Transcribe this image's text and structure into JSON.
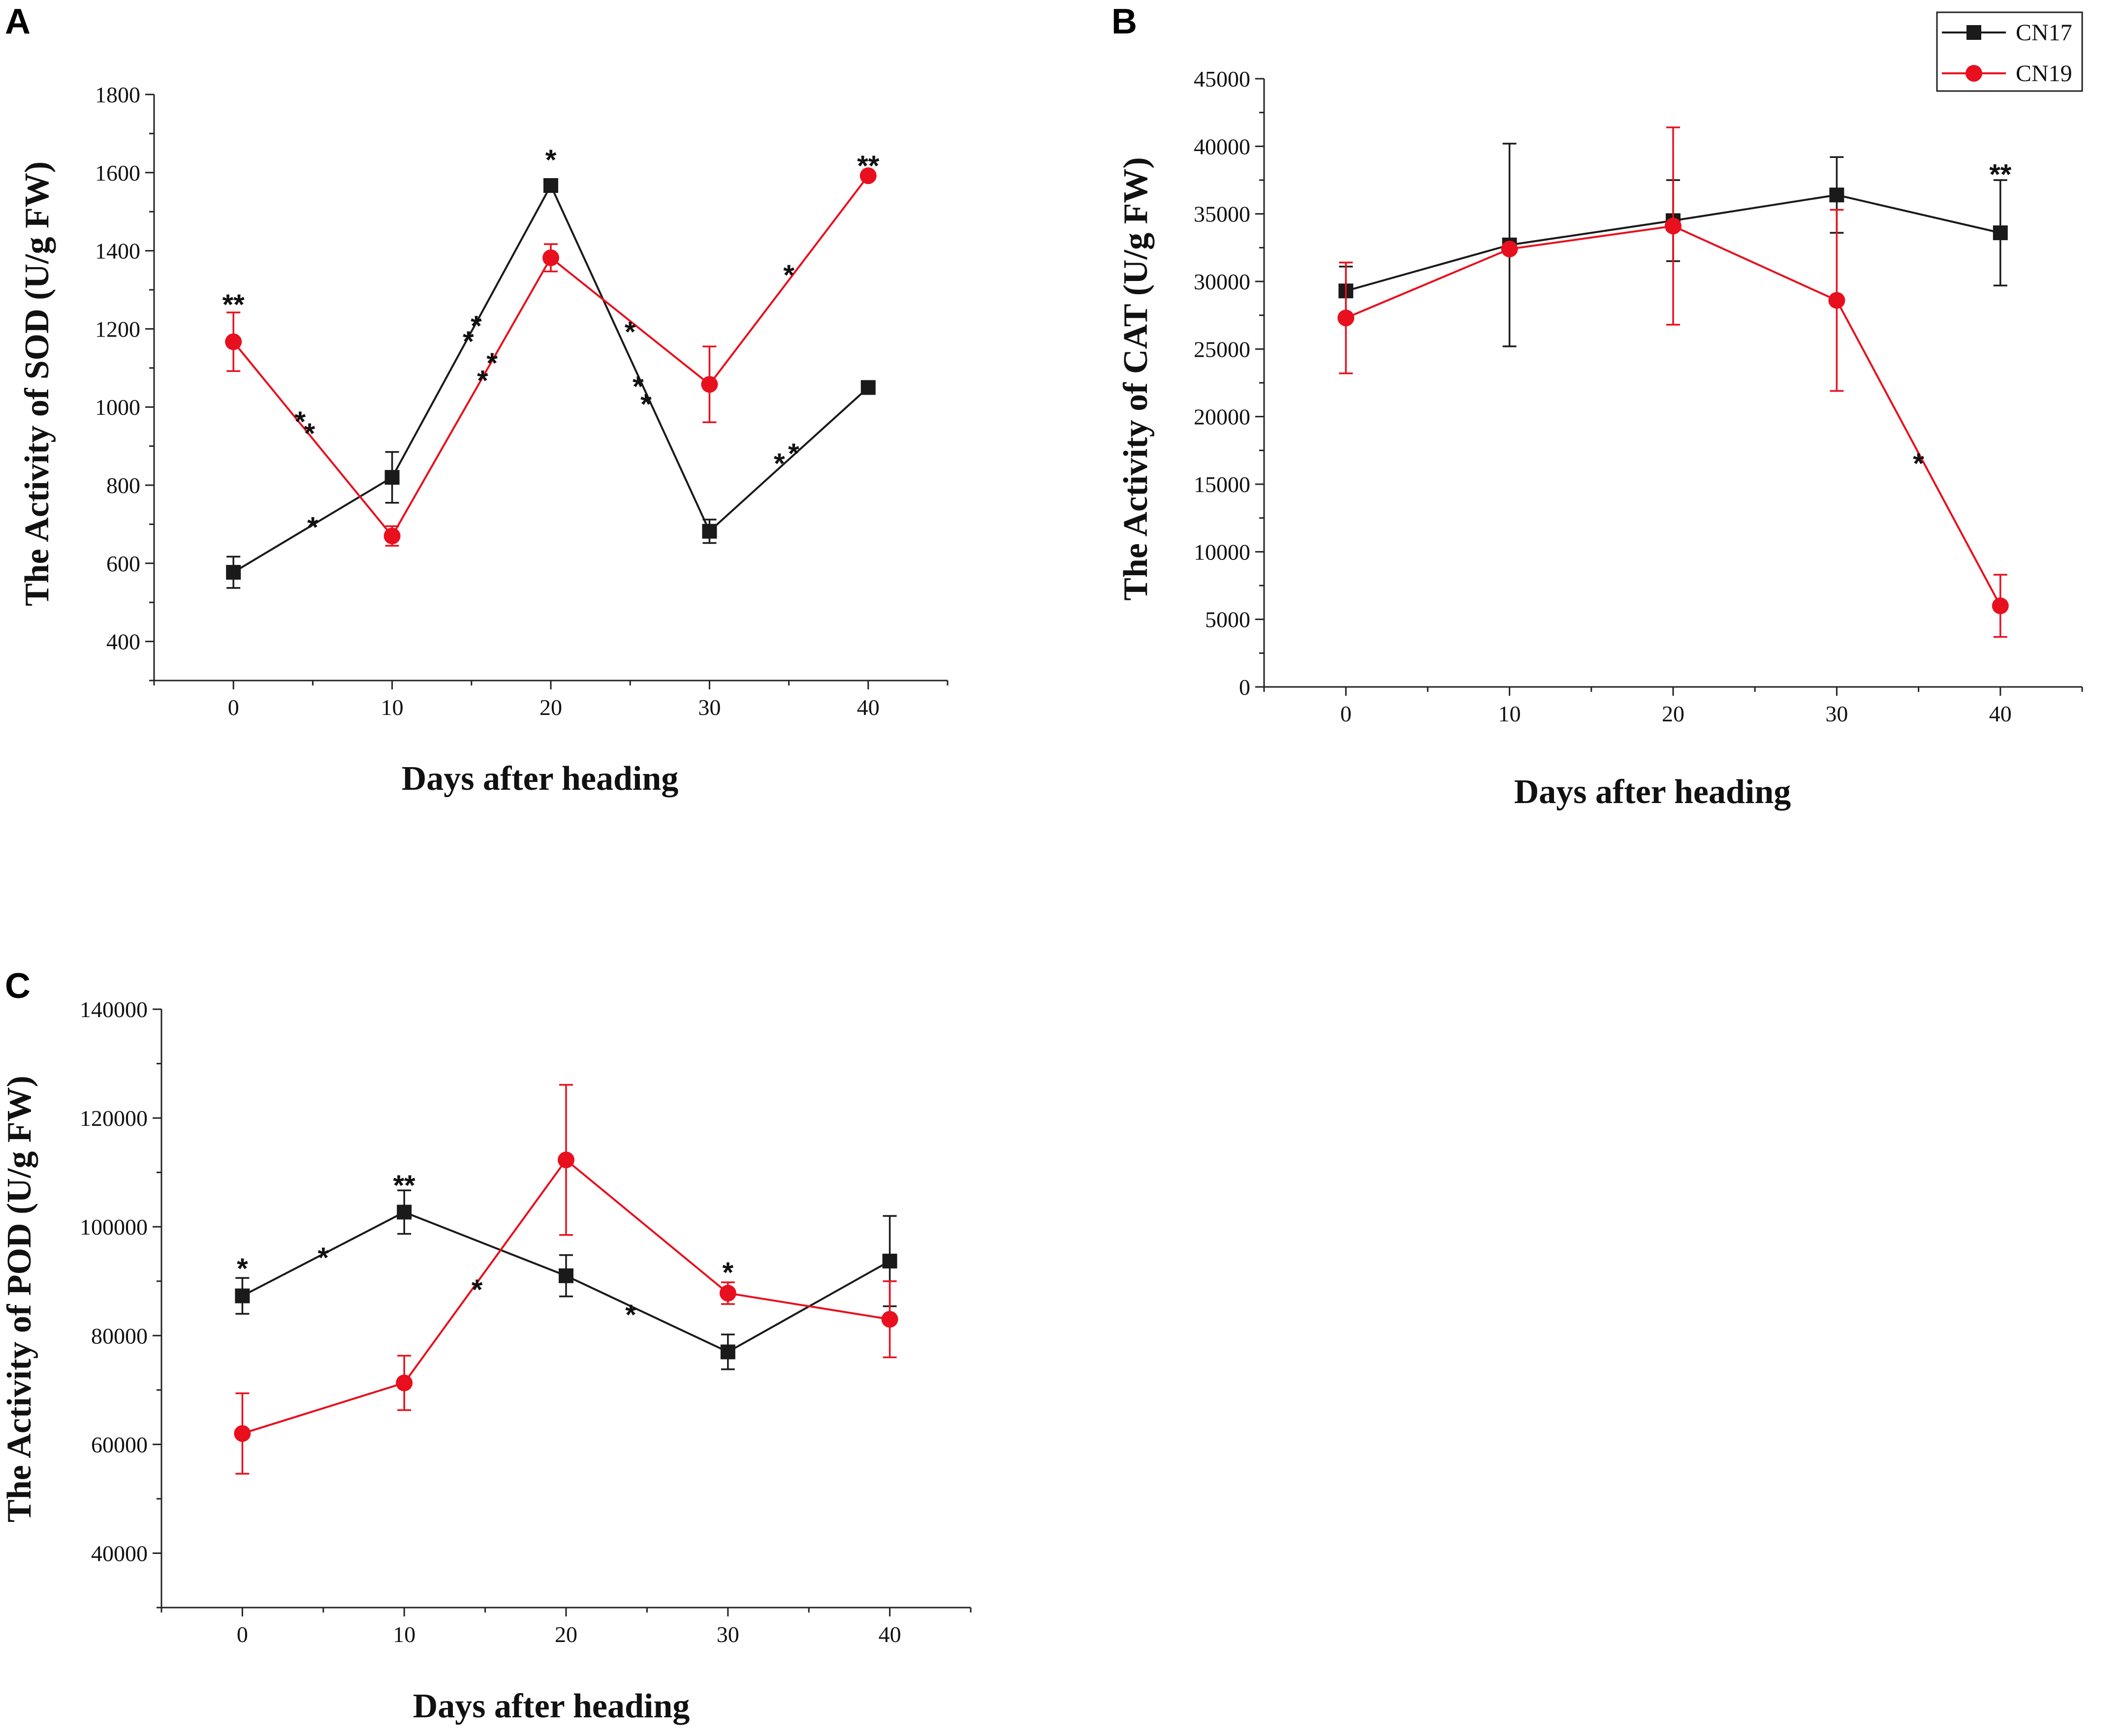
{
  "legend": {
    "entries": [
      {
        "name": "CN17",
        "color": "#1a1a1a",
        "marker": "square"
      },
      {
        "name": "CN19",
        "color": "#e8101e",
        "marker": "circle"
      }
    ]
  },
  "chart_data": [
    {
      "panel": "A",
      "type": "line",
      "xlabel": "Days after heading",
      "ylabel": "The Activity of SOD (U/g FW)",
      "x": [
        0,
        10,
        20,
        30,
        40
      ],
      "xlim": [
        -5,
        45
      ],
      "ylim": [
        300,
        1800
      ],
      "xticks": [
        0,
        10,
        20,
        30,
        40
      ],
      "yticks": [
        400,
        600,
        800,
        1000,
        1200,
        1400,
        1600,
        1800
      ],
      "series": [
        {
          "name": "CN17",
          "color": "#1a1a1a",
          "marker": "square",
          "values": [
            577,
            820,
            1567,
            682,
            1050
          ],
          "errors": [
            40,
            65,
            10,
            30,
            0
          ]
        },
        {
          "name": "CN19",
          "color": "#e8101e",
          "marker": "circle",
          "values": [
            1167,
            670,
            1382,
            1058,
            1592
          ],
          "errors": [
            75,
            25,
            35,
            97,
            0
          ]
        }
      ],
      "annotations": [
        {
          "x": 0,
          "y": 1265,
          "text": "**"
        },
        {
          "x": 20,
          "y": 1635,
          "text": "*"
        },
        {
          "x": 40,
          "y": 1620,
          "text": "**"
        },
        {
          "x": 4.2,
          "y": 965,
          "text": "*"
        },
        {
          "x": 4.8,
          "y": 935,
          "text": "*"
        },
        {
          "x": 5,
          "y": 695,
          "text": "*"
        },
        {
          "x": 14.8,
          "y": 1170,
          "text": "*"
        },
        {
          "x": 15.3,
          "y": 1210,
          "text": "*"
        },
        {
          "x": 15.7,
          "y": 1070,
          "text": "*"
        },
        {
          "x": 16.3,
          "y": 1115,
          "text": "*"
        },
        {
          "x": 25,
          "y": 1195,
          "text": "*"
        },
        {
          "x": 25.5,
          "y": 1055,
          "text": "*"
        },
        {
          "x": 26,
          "y": 1010,
          "text": "*"
        },
        {
          "x": 34.4,
          "y": 858,
          "text": "*"
        },
        {
          "x": 35.3,
          "y": 883,
          "text": "*"
        },
        {
          "x": 35,
          "y": 1340,
          "text": "*"
        }
      ]
    },
    {
      "panel": "B",
      "type": "line",
      "xlabel": "Days after heading",
      "ylabel": "The Activity of CAT (U/g FW)",
      "x": [
        0,
        10,
        20,
        30,
        40
      ],
      "xlim": [
        -5,
        45
      ],
      "ylim": [
        0,
        45000
      ],
      "xticks": [
        0,
        10,
        20,
        30,
        40
      ],
      "yticks": [
        0,
        5000,
        10000,
        15000,
        20000,
        25000,
        30000,
        35000,
        40000,
        45000
      ],
      "series": [
        {
          "name": "CN17",
          "color": "#1a1a1a",
          "marker": "square",
          "values": [
            29300,
            32700,
            34500,
            36400,
            33600
          ],
          "errors": [
            1800,
            7500,
            3000,
            2800,
            3900
          ]
        },
        {
          "name": "CN19",
          "color": "#e8101e",
          "marker": "circle",
          "values": [
            27300,
            32400,
            34100,
            28600,
            6000
          ],
          "errors": [
            4100,
            0,
            7300,
            6700,
            2300
          ]
        }
      ],
      "annotations": [
        {
          "x": 40,
          "y": 38000,
          "text": "**"
        },
        {
          "x": 35,
          "y": 16600,
          "text": "*"
        }
      ]
    },
    {
      "panel": "C",
      "type": "line",
      "xlabel": "Days after heading",
      "ylabel": "The Activity of POD (U/g FW)",
      "x": [
        0,
        10,
        20,
        30,
        40
      ],
      "xlim": [
        -5,
        45
      ],
      "ylim": [
        30000,
        140000
      ],
      "xticks": [
        0,
        10,
        20,
        30,
        40
      ],
      "yticks": [
        40000,
        60000,
        80000,
        100000,
        120000,
        140000
      ],
      "series": [
        {
          "name": "CN17",
          "color": "#1a1a1a",
          "marker": "square",
          "values": [
            87300,
            102700,
            91000,
            77000,
            93700
          ],
          "errors": [
            3300,
            4000,
            3800,
            3200,
            8300
          ]
        },
        {
          "name": "CN19",
          "color": "#e8101e",
          "marker": "circle",
          "values": [
            62000,
            71300,
            112300,
            87800,
            83000
          ],
          "errors": [
            7400,
            5000,
            13800,
            2000,
            7000
          ]
        }
      ],
      "annotations": [
        {
          "x": 0,
          "y": 92500,
          "text": "*"
        },
        {
          "x": 10,
          "y": 107800,
          "text": "**"
        },
        {
          "x": 30,
          "y": 91800,
          "text": "*"
        },
        {
          "x": 5,
          "y": 94500,
          "text": "*"
        },
        {
          "x": 14.5,
          "y": 88600,
          "text": "*"
        },
        {
          "x": 24,
          "y": 84000,
          "text": "*"
        }
      ]
    }
  ]
}
